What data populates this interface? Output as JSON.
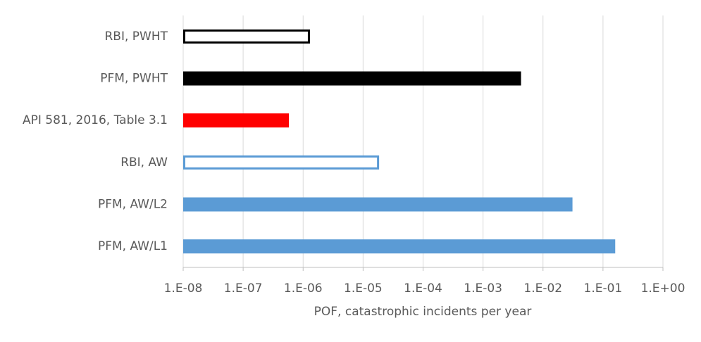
{
  "chart_data": {
    "type": "bar",
    "orientation": "horizontal",
    "x_label": "POF, catastrophic incidents per year",
    "categories": [
      "RBI, PWHT",
      "PFM, PWHT",
      "API 581, 2016, Table 3.1",
      "RBI, AW",
      "PFM, AW/L2",
      "PFM, AW/L1"
    ],
    "values": [
      1.3e-06,
      0.0043,
      5.8e-07,
      1.85e-05,
      0.031,
      0.16
    ],
    "colors": [
      "#000000",
      "#000000",
      "#ff0000",
      "#5b9bd5",
      "#5b9bd5",
      "#5b9bd5"
    ],
    "fill_styles": [
      "outline",
      "solid",
      "solid",
      "outline",
      "solid",
      "solid"
    ],
    "xscale": "log",
    "xlim": [
      1e-08,
      1
    ],
    "xticks": [
      {
        "value": 1e-08,
        "label": "1.E-08"
      },
      {
        "value": 1e-07,
        "label": "1.E-07"
      },
      {
        "value": 1e-06,
        "label": "1.E-06"
      },
      {
        "value": 1e-05,
        "label": "1.E-05"
      },
      {
        "value": 0.0001,
        "label": "1.E-04"
      },
      {
        "value": 0.001,
        "label": "1.E-03"
      },
      {
        "value": 0.01,
        "label": "1.E-02"
      },
      {
        "value": 0.1,
        "label": "1.E-01"
      },
      {
        "value": 1,
        "label": "1.E+00"
      }
    ],
    "grid": true
  }
}
